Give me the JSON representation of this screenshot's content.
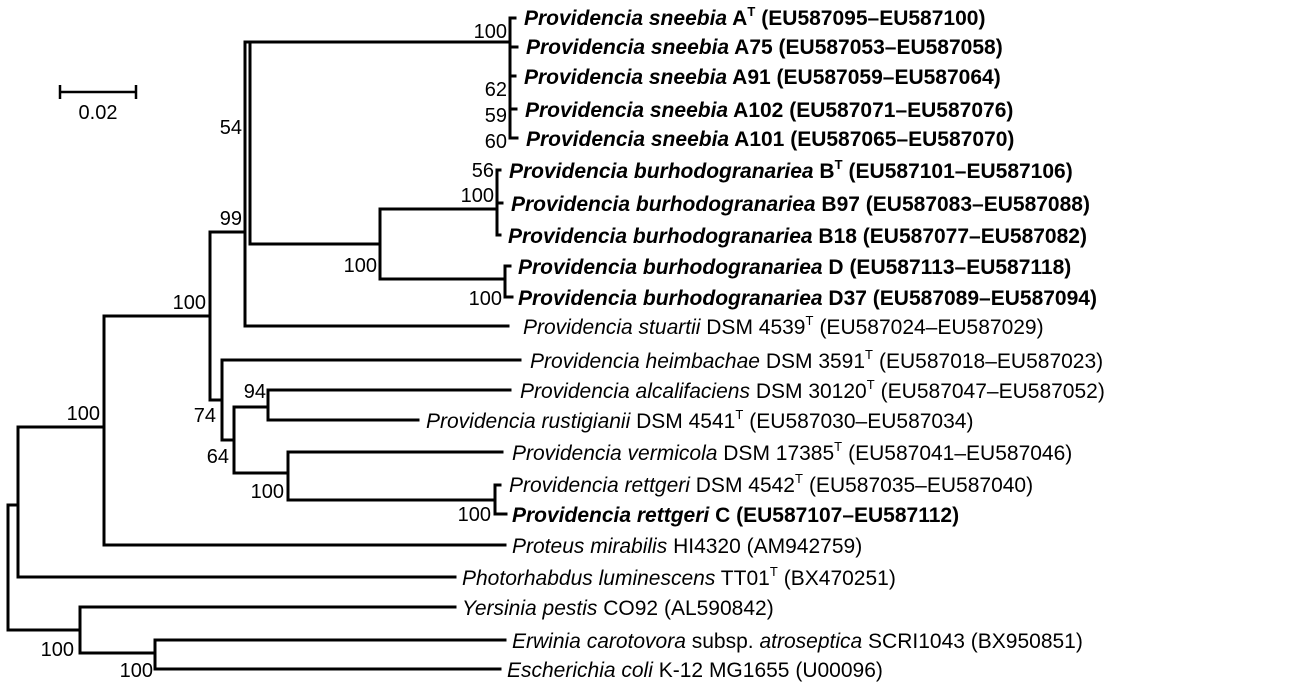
{
  "scale_bar": {
    "label": "0.02"
  },
  "taxa": [
    {
      "genus_species": "Providencia sneebia",
      "strain": "A",
      "sup": "T",
      "accession": "(EU587095–EU587100)",
      "bold": true
    },
    {
      "genus_species": "Providencia sneebia",
      "strain": "A75",
      "sup": "",
      "accession": "(EU587053–EU587058)",
      "bold": true
    },
    {
      "genus_species": "Providencia sneebia",
      "strain": "A91",
      "sup": "",
      "accession": "(EU587059–EU587064)",
      "bold": true
    },
    {
      "genus_species": "Providencia sneebia",
      "strain": "A102",
      "sup": "",
      "accession": "(EU587071–EU587076)",
      "bold": true
    },
    {
      "genus_species": "Providencia sneebia",
      "strain": "A101",
      "sup": "",
      "accession": "(EU587065–EU587070)",
      "bold": true
    },
    {
      "genus_species": "Providencia burhodogranariea",
      "strain": "B",
      "sup": "T",
      "accession": "(EU587101–EU587106)",
      "bold": true
    },
    {
      "genus_species": "Providencia burhodogranariea",
      "strain": "B97",
      "sup": "",
      "accession": "(EU587083–EU587088)",
      "bold": true
    },
    {
      "genus_species": "Providencia burhodogranariea",
      "strain": "B18",
      "sup": "",
      "accession": "(EU587077–EU587082)",
      "bold": true
    },
    {
      "genus_species": "Providencia burhodogranariea",
      "strain": "D",
      "sup": "",
      "accession": "(EU587113–EU587118)",
      "bold": true
    },
    {
      "genus_species": "Providencia burhodogranariea",
      "strain": "D37",
      "sup": "",
      "accession": "(EU587089–EU587094)",
      "bold": true
    },
    {
      "genus_species": "Providencia stuartii",
      "strain": "DSM 4539",
      "sup": "T",
      "accession": "(EU587024–EU587029)",
      "bold": false
    },
    {
      "genus_species": "Providencia heimbachae",
      "strain": "DSM 3591",
      "sup": "T",
      "accession": "(EU587018–EU587023)",
      "bold": false
    },
    {
      "genus_species": "Providencia alcalifaciens",
      "strain": "DSM 30120",
      "sup": "T",
      "accession": "(EU587047–EU587052)",
      "bold": false
    },
    {
      "genus_species": "Providencia rustigianii",
      "strain": "DSM 4541",
      "sup": "T",
      "accession": "(EU587030–EU587034)",
      "bold": false
    },
    {
      "genus_species": "Providencia vermicola",
      "strain": "DSM 17385",
      "sup": "T",
      "accession": "(EU587041–EU587046)",
      "bold": false
    },
    {
      "genus_species": "Providencia rettgeri",
      "strain": "DSM 4542",
      "sup": "T",
      "accession": "(EU587035–EU587040)",
      "bold": false
    },
    {
      "genus_species": "Providencia rettgeri",
      "strain": "C",
      "sup": "",
      "accession": "(EU587107–EU587112)",
      "bold": true
    },
    {
      "genus_species": "Proteus mirabilis",
      "strain": "HI4320",
      "sup": "",
      "accession": "(AM942759)",
      "bold": false
    },
    {
      "genus_species": "Photorhabdus luminescens",
      "strain": "TT01",
      "sup": "T",
      "accession": "(BX470251)",
      "bold": false
    },
    {
      "genus_species": "Yersinia pestis",
      "strain": "CO92",
      "sup": "",
      "accession": "(AL590842)",
      "bold": false
    },
    {
      "genus_species": "Erwinia carotovora",
      "strain": "subsp.",
      "sup": "",
      "accession": "atroseptica",
      "extra": "SCRI1043 (BX950851)",
      "bold": false
    },
    {
      "genus_species": "Escherichia coli",
      "strain": "K-12 MG1655",
      "sup": "",
      "accession": "(U00096)",
      "bold": false
    }
  ],
  "bootstrap": [
    "100",
    "62",
    "59",
    "60",
    "54",
    "56",
    "100",
    "100",
    "100",
    "99",
    "100",
    "94",
    "74",
    "64",
    "100",
    "100",
    "100",
    "100",
    "100"
  ]
}
